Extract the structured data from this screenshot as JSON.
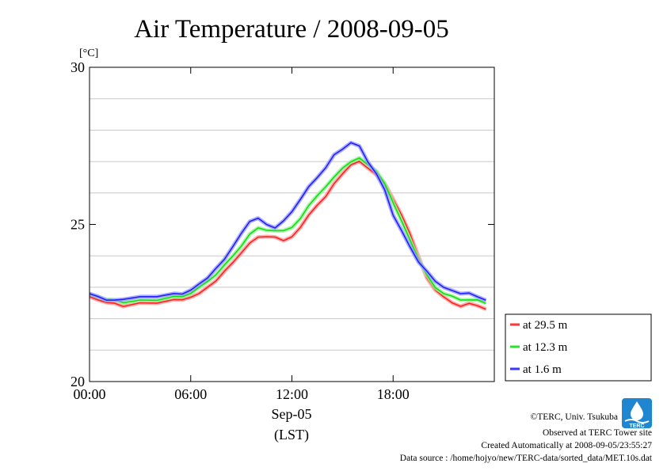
{
  "chart_data": {
    "type": "line",
    "title": "Air Temperature / 2008-09-05",
    "ylabel": "[°C]",
    "xlabel_line1": "Sep-05",
    "xlabel_line2": "(LST)",
    "ylim": [
      20,
      30
    ],
    "xlim_hours": [
      0,
      24
    ],
    "yticks": [
      {
        "value": 20,
        "label": "20"
      },
      {
        "value": 25,
        "label": "25"
      },
      {
        "value": 30,
        "label": "30"
      }
    ],
    "ygrid": [
      21,
      22,
      23,
      24,
      26,
      27,
      28,
      29
    ],
    "xticks": [
      {
        "value": 0,
        "label": "00:00"
      },
      {
        "value": 6,
        "label": "06:00"
      },
      {
        "value": 12,
        "label": "12:00"
      },
      {
        "value": 18,
        "label": "18:00"
      }
    ],
    "legend_position": "outside-right",
    "series": [
      {
        "name": "at 29.5 m",
        "color": "#ff2020",
        "halo": "#ff9a9a",
        "x": [
          0,
          0.5,
          1,
          1.5,
          2,
          3,
          4,
          5,
          5.5,
          6,
          6.5,
          7,
          7.5,
          8,
          8.5,
          9,
          9.5,
          10,
          10.5,
          11,
          11.5,
          12,
          12.5,
          13,
          13.5,
          14,
          14.5,
          15,
          15.5,
          16,
          16.5,
          17,
          17.5,
          18,
          18.5,
          19,
          19.5,
          20,
          20.5,
          21,
          21.5,
          22,
          22.5,
          23,
          23.5
        ],
        "values": [
          22.7,
          22.6,
          22.5,
          22.5,
          22.4,
          22.5,
          22.5,
          22.6,
          22.6,
          22.7,
          22.8,
          23.0,
          23.2,
          23.5,
          23.8,
          24.1,
          24.4,
          24.6,
          24.6,
          24.6,
          24.5,
          24.6,
          24.9,
          25.3,
          25.6,
          25.9,
          26.3,
          26.6,
          26.9,
          27.0,
          26.8,
          26.6,
          26.3,
          25.8,
          25.3,
          24.7,
          24.0,
          23.3,
          22.9,
          22.7,
          22.5,
          22.4,
          22.5,
          22.4,
          22.3
        ]
      },
      {
        "name": "at 12.3 m",
        "color": "#10e010",
        "halo": "#9af09a",
        "x": [
          0,
          0.5,
          1,
          1.5,
          2,
          3,
          4,
          5,
          5.5,
          6,
          6.5,
          7,
          7.5,
          8,
          8.5,
          9,
          9.5,
          10,
          10.5,
          11,
          11.5,
          12,
          12.5,
          13,
          13.5,
          14,
          14.5,
          15,
          15.5,
          16,
          16.5,
          17,
          17.5,
          18,
          18.5,
          19,
          19.5,
          20,
          20.5,
          21,
          21.5,
          22,
          22.5,
          23,
          23.5
        ],
        "values": [
          22.8,
          22.7,
          22.6,
          22.6,
          22.5,
          22.6,
          22.6,
          22.7,
          22.7,
          22.8,
          23.0,
          23.2,
          23.4,
          23.7,
          24.0,
          24.3,
          24.7,
          24.9,
          24.8,
          24.8,
          24.8,
          24.9,
          25.2,
          25.6,
          25.9,
          26.2,
          26.5,
          26.8,
          27.0,
          27.1,
          26.9,
          26.7,
          26.3,
          25.7,
          25.1,
          24.5,
          23.9,
          23.4,
          23.0,
          22.8,
          22.7,
          22.6,
          22.6,
          22.6,
          22.5
        ]
      },
      {
        "name": "at 1.6 m",
        "color": "#2020ff",
        "halo": "#9a9aff",
        "x": [
          0,
          0.5,
          1,
          1.5,
          2,
          3,
          4,
          5,
          5.5,
          6,
          6.5,
          7,
          7.5,
          8,
          8.5,
          9,
          9.5,
          10,
          10.5,
          11,
          11.5,
          12,
          12.5,
          13,
          13.5,
          14,
          14.5,
          15,
          15.5,
          16,
          16.5,
          17,
          17.5,
          18,
          18.5,
          19,
          19.5,
          20,
          20.5,
          21,
          21.5,
          22,
          22.5,
          23,
          23.5
        ],
        "values": [
          22.8,
          22.7,
          22.6,
          22.6,
          22.6,
          22.7,
          22.7,
          22.8,
          22.8,
          22.9,
          23.1,
          23.3,
          23.6,
          23.9,
          24.3,
          24.7,
          25.1,
          25.2,
          25.0,
          24.9,
          25.1,
          25.4,
          25.8,
          26.2,
          26.5,
          26.8,
          27.2,
          27.4,
          27.6,
          27.5,
          27.0,
          26.6,
          26.1,
          25.3,
          24.8,
          24.3,
          23.8,
          23.5,
          23.2,
          23.0,
          22.9,
          22.8,
          22.8,
          22.7,
          22.6
        ]
      }
    ]
  },
  "footer": {
    "copyright": "©TERC, Univ. Tsukuba",
    "observed": "Observed at TERC Tower site",
    "created": "Created Automatically at 2008-09-05/23:55:27",
    "source": "Data source : /home/hojyo/new/TERC-data/sorted_data/MET.10s.dat",
    "logo_text": "TERC"
  }
}
